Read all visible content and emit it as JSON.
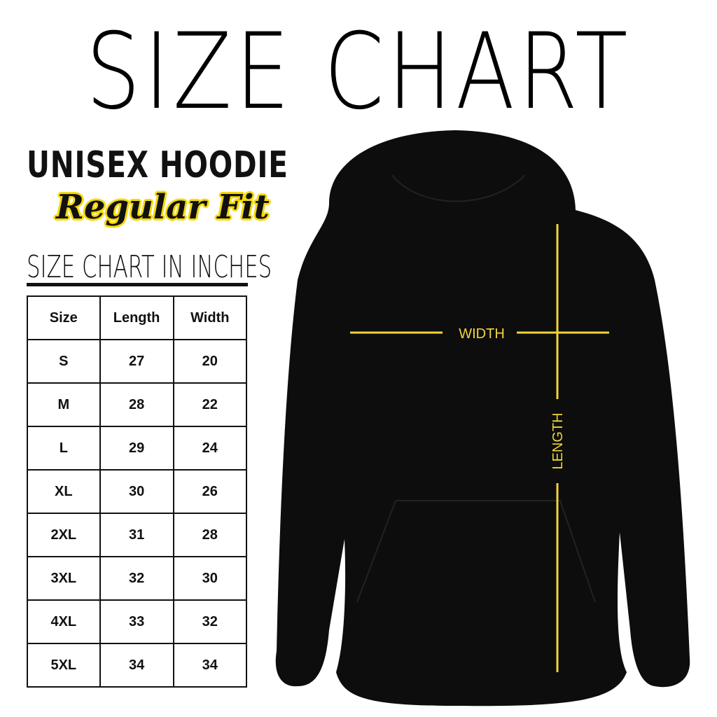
{
  "title": "SIZE CHART",
  "product": "UNISEX HOODIE",
  "fit": "Regular Fit",
  "unit_heading": "SIZE CHART IN INCHES",
  "table": {
    "headers": [
      "Size",
      "Length",
      "Width"
    ],
    "rows": [
      [
        "S",
        "27",
        "20"
      ],
      [
        "M",
        "28",
        "22"
      ],
      [
        "L",
        "29",
        "24"
      ],
      [
        "XL",
        "30",
        "26"
      ],
      [
        "2XL",
        "31",
        "28"
      ],
      [
        "3XL",
        "32",
        "30"
      ],
      [
        "4XL",
        "33",
        "32"
      ],
      [
        "5XL",
        "34",
        "34"
      ]
    ]
  },
  "diagram": {
    "width_label": "WIDTH",
    "length_label": "LENGTH",
    "line_color": "#f2d43a",
    "garment_color": "#0d0d0d"
  }
}
